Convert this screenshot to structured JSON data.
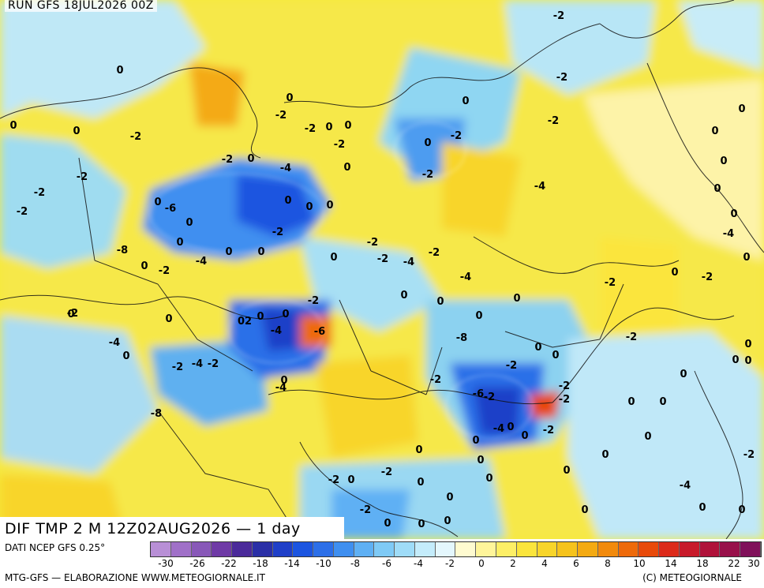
{
  "header": {
    "run_title": "RUN GFS 18JUL2026 00Z"
  },
  "product": {
    "title": "DIF TMP 2 M 12Z02AUG2026 — 1 day"
  },
  "footer": {
    "data_source": "DATI NCEP GFS 0.25°",
    "credit_left": "MTG-GFS — ELABORAZIONE WWW.METEOGIORNALE.IT",
    "credit_right": "(C) METEOGIORNALE"
  },
  "legend": {
    "swatches": [
      "#b88fd6",
      "#a070c8",
      "#8858b8",
      "#6f3aa6",
      "#4b2a9a",
      "#2a2fa6",
      "#1f3fc8",
      "#1c55e0",
      "#2c6fe8",
      "#3f8ff0",
      "#5fb0f4",
      "#7fcaf6",
      "#9fdcf8",
      "#c4ecfb",
      "#e4f7fd",
      "#fffbd0",
      "#fff59a",
      "#fdef66",
      "#fbe53c",
      "#f8d52a",
      "#f6c31c",
      "#f4aa12",
      "#f28a0c",
      "#ee6a0a",
      "#e84a0a",
      "#dc2a1a",
      "#c81a2a",
      "#b0123a",
      "#98104a",
      "#80105a"
    ],
    "ticks": [
      "-30",
      "-26",
      "-22",
      "-18",
      "-14",
      "-10",
      "-8",
      "-6",
      "-4",
      "-2",
      "0",
      "2",
      "4",
      "6",
      "8",
      "10",
      "14",
      "18",
      "22",
      "30"
    ]
  },
  "map": {
    "label_values": [
      "-2",
      "0",
      "-2",
      "0",
      "0",
      "0",
      "-2",
      "-2",
      "0",
      "0",
      "0",
      "-2",
      "-2",
      "0",
      "-2",
      "0",
      "0",
      "-2",
      "0",
      "-2",
      "0",
      "0",
      "-4",
      "-2",
      "-2",
      "-4",
      "-2",
      "0",
      "0",
      "0",
      "0",
      "0",
      "-6",
      "-2",
      "0",
      "0",
      "-2",
      "-4",
      "-8",
      "0",
      "0",
      "0",
      "-2",
      "-4",
      "0",
      "-2",
      "-4",
      "-2",
      "0",
      "-2",
      "0",
      "0",
      "-4",
      "-2",
      "0",
      "0",
      "0",
      "-2",
      "0",
      "0",
      "0",
      "-2",
      "0",
      "02",
      "-4",
      "-6",
      "-2",
      "0",
      "-2",
      "-8",
      "-4",
      "0",
      "0",
      "0",
      "-2",
      "-2",
      "-4",
      "0",
      "-2",
      "0",
      "0",
      "0",
      "-2",
      "0",
      "-2",
      "-6",
      "-2",
      "-4",
      "0",
      "-2",
      "0",
      "-8",
      "-4",
      "0",
      "0",
      "-2",
      "0",
      "0",
      "0",
      "-2",
      "0",
      "-2",
      "-2",
      "0",
      "0",
      "0",
      "0",
      "-4",
      "0",
      "-2",
      "0",
      "0",
      "0",
      "0",
      "0",
      "0",
      "0"
    ]
  }
}
